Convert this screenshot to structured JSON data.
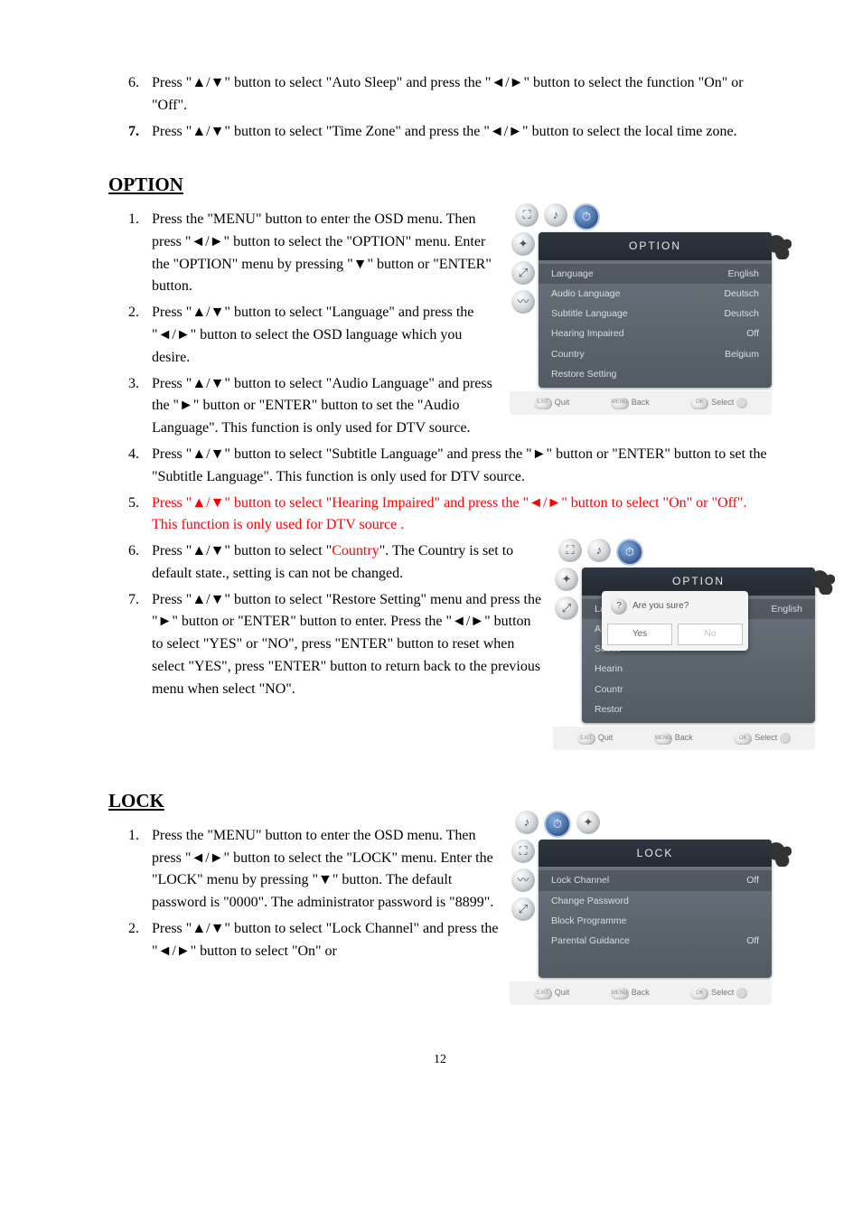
{
  "intro_list": {
    "start": 6,
    "items": [
      {
        "bold": false,
        "text": "Press \"▲/▼\" button to select \"Auto Sleep\" and press the \"◄/►\" button to select the function \"On\" or \"Off\"."
      },
      {
        "bold": true,
        "text": "Press \"▲/▼\" button to select \"Time Zone\" and press the \"◄/►\" button to select the local time zone."
      }
    ]
  },
  "option": {
    "heading": "OPTION",
    "items": [
      "Press the \"MENU\" button to enter the OSD menu. Then press \"◄/►\" button to select the \"OPTION\" menu. Enter the \"OPTION\" menu by pressing \"▼\" button or \"ENTER\" button.",
      "Press \"▲/▼\" button to select \"Language\" and press the \"◄/►\" button to select the OSD language which you desire.",
      "Press \"▲/▼\" button to select \"Audio Language\" and press the \"►\" button or \"ENTER\" button to set the \"Audio Language\". This function is only used for DTV source.",
      "Press \"▲/▼\" button to select \"Subtitle Language\" and press the \"►\" button or \"ENTER\" button to set the \"Subtitle Language\". This function is only used for DTV source.",
      "",
      "",
      "Press \"▲/▼\" button to select \"Restore Setting\" menu and press the \"►\" button or \"ENTER\" button to enter. Press the \"◄/►\" button to select \"YES\" or \"NO\", press \"ENTER\" button to reset when select \"YES\", press \"ENTER\" button to return back to the previous menu when select \"NO\"."
    ],
    "item5_red": "Press \"▲/▼\" button to select \"Hearing Impaired\" and press the \"◄/►\" button to select \"On\" or \"Off\". This function is only used for DTV source .",
    "item6_pre": "Press \"▲/▼\" button to select \"",
    "item6_red": "Country",
    "item6_post": "\". The Country is set to default state., setting is can not be changed."
  },
  "lock": {
    "heading": "LOCK",
    "items": [
      "Press the \"MENU\" button to enter the OSD menu. Then press \"◄/►\" button to select the \"LOCK\" menu. Enter the \"LOCK\" menu by pressing \"▼\" button. The default password is \"0000\". The administrator password is \"8899\".",
      "Press \"▲/▼\" button to select \"Lock Channel\" and press the \"◄/►\" button to select \"On\" or"
    ]
  },
  "osd_option": {
    "title": "OPTION",
    "rows": [
      {
        "label": "Language",
        "value": "English",
        "hl": true
      },
      {
        "label": "Audio Language",
        "value": "Deutsch"
      },
      {
        "label": "Subtitle Language",
        "value": "Deutsch"
      },
      {
        "label": "Hearing Impaired",
        "value": "Off"
      },
      {
        "label": "Country",
        "value": "Belgium"
      },
      {
        "label": "Restore Setting",
        "value": ""
      }
    ],
    "footer": {
      "quit": "Quit",
      "back": "Back",
      "select": "Select"
    }
  },
  "osd_restore": {
    "title": "OPTION",
    "rows_bg": [
      {
        "label": "Language",
        "value": "English",
        "hl": true
      },
      {
        "label": "Audio",
        "value": ""
      },
      {
        "label": "Subtitl",
        "value": ""
      },
      {
        "label": "Hearin",
        "value": ""
      },
      {
        "label": "Countr",
        "value": ""
      },
      {
        "label": "Restor",
        "value": ""
      }
    ],
    "dialog": {
      "q": "Are you sure?",
      "yes": "Yes",
      "no": "No"
    },
    "footer": {
      "quit": "Quit",
      "back": "Back",
      "select": "Select"
    }
  },
  "osd_lock": {
    "title": "LOCK",
    "rows": [
      {
        "label": "Lock Channel",
        "value": "Off",
        "hl": true
      },
      {
        "label": "Change Password",
        "value": ""
      },
      {
        "label": "Block Programme",
        "value": ""
      },
      {
        "label": "Parental Guidance",
        "value": "Off"
      }
    ],
    "footer": {
      "quit": "Quit",
      "back": "Back",
      "select": "Select"
    }
  },
  "page_number": "12"
}
